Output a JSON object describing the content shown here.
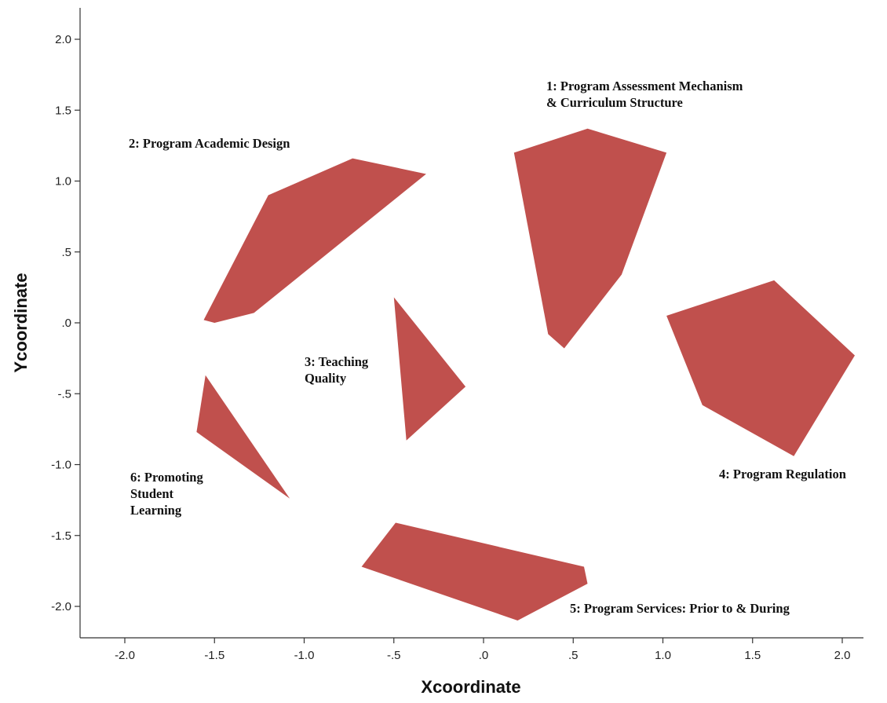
{
  "chart_data": {
    "type": "scatter",
    "xlabel": "Xcoordinate",
    "ylabel": "Ycoordinate",
    "xlim": [
      -2.2,
      2.2
    ],
    "ylim": [
      -2.2,
      2.2
    ],
    "grid": false,
    "legend": "none",
    "x_ticks": [
      -2.0,
      -1.5,
      -1.0,
      -0.5,
      0.0,
      0.5,
      1.0,
      1.5,
      2.0
    ],
    "x_tick_labels": [
      "-2.0",
      "-1.5",
      "-1.0",
      "-.5",
      ".0",
      ".5",
      "1.0",
      "1.5",
      "2.0"
    ],
    "y_ticks": [
      2.0,
      1.5,
      1.0,
      0.5,
      0.0,
      -0.5,
      -1.0,
      -1.5,
      -2.0
    ],
    "y_tick_labels": [
      "2.0",
      "1.5",
      "1.0",
      ".5",
      ".0",
      "-.5",
      "-1.0",
      "-1.5",
      "-2.0"
    ],
    "fill_color": "#c0504d",
    "clusters": [
      {
        "id": 1,
        "label_lines": [
          "1: Program Assessment Mechanism",
          "& Curriculum Structure"
        ],
        "polygon": [
          [
            0.17,
            1.2
          ],
          [
            0.58,
            1.37
          ],
          [
            1.02,
            1.2
          ],
          [
            0.77,
            0.34
          ],
          [
            0.45,
            -0.18
          ],
          [
            0.36,
            -0.08
          ]
        ]
      },
      {
        "id": 2,
        "label_lines": [
          "2: Program Academic Design"
        ],
        "polygon": [
          [
            -1.2,
            0.9
          ],
          [
            -0.73,
            1.16
          ],
          [
            -0.32,
            1.05
          ],
          [
            -1.28,
            0.07
          ],
          [
            -1.5,
            0.0
          ],
          [
            -1.56,
            0.02
          ]
        ]
      },
      {
        "id": 3,
        "label_lines": [
          "3: Teaching",
          "Quality"
        ],
        "polygon": [
          [
            -0.5,
            0.18
          ],
          [
            -0.1,
            -0.45
          ],
          [
            -0.43,
            -0.83
          ]
        ]
      },
      {
        "id": 4,
        "label_lines": [
          "4: Program Regulation"
        ],
        "polygon": [
          [
            1.02,
            0.05
          ],
          [
            1.62,
            0.3
          ],
          [
            2.07,
            -0.23
          ],
          [
            1.73,
            -0.94
          ],
          [
            1.22,
            -0.58
          ]
        ]
      },
      {
        "id": 5,
        "label_lines": [
          "5: Program Services: Prior to & During"
        ],
        "polygon": [
          [
            -0.49,
            -1.41
          ],
          [
            0.56,
            -1.72
          ],
          [
            0.58,
            -1.84
          ],
          [
            0.19,
            -2.1
          ],
          [
            -0.68,
            -1.72
          ]
        ]
      },
      {
        "id": 6,
        "label_lines": [
          "6: Promoting",
          "Student",
          "Learning"
        ],
        "polygon": [
          [
            -1.55,
            -0.37
          ],
          [
            -1.08,
            -1.24
          ],
          [
            -1.6,
            -0.77
          ]
        ]
      }
    ]
  }
}
